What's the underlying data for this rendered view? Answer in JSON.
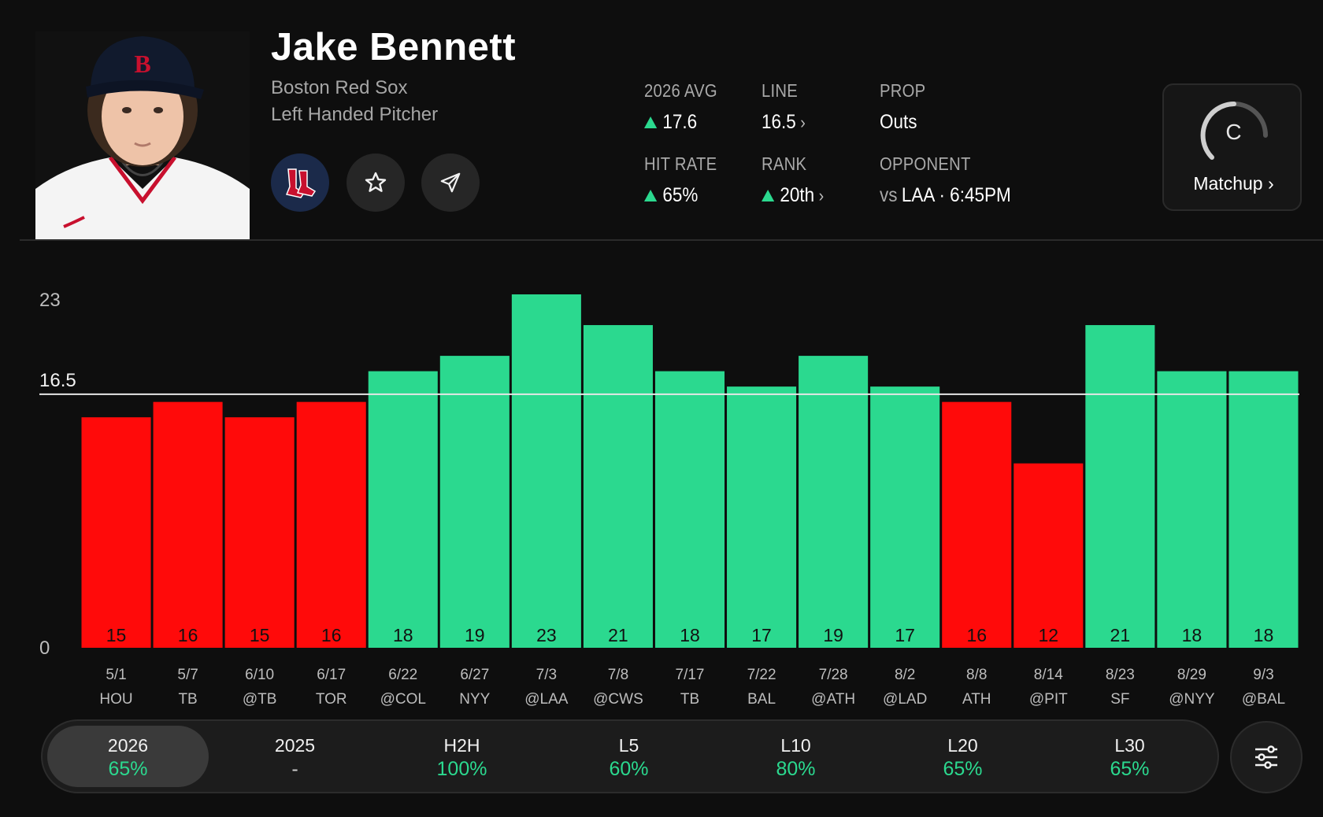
{
  "player": {
    "name": "Jake Bennett",
    "team": "Boston Red Sox",
    "position": "Left Handed Pitcher"
  },
  "actions": {
    "team_logo_icon": "red-sox-logo-icon",
    "favorite_icon": "star-icon",
    "share_icon": "send-icon"
  },
  "stats": {
    "avg_label": "2026 AVG",
    "avg_value": "17.6",
    "line_label": "LINE",
    "line_value": "16.5",
    "prop_label": "PROP",
    "prop_value": "Outs",
    "hit_rate_label": "HIT RATE",
    "hit_rate_value": "65%",
    "rank_label": "RANK",
    "rank_value": "20th",
    "opponent_label": "OPPONENT",
    "opponent_prefix": "vs",
    "opponent_value": "LAA · 6:45PM"
  },
  "matchup": {
    "grade": "C",
    "label": "Matchup",
    "chevron": "›"
  },
  "colors": {
    "over": "#2bd98f",
    "under": "#ff0a0a",
    "line": "#e6e6e6"
  },
  "chart_data": {
    "type": "bar",
    "categories": [
      "5/1",
      "5/7",
      "6/10",
      "6/17",
      "6/22",
      "6/27",
      "7/3",
      "7/8",
      "7/17",
      "7/22",
      "7/28",
      "8/2",
      "8/8",
      "8/14",
      "8/23",
      "8/29",
      "9/3"
    ],
    "opponents": [
      "HOU",
      "TB",
      "@TB",
      "TOR",
      "@COL",
      "NYY",
      "@LAA",
      "@CWS",
      "TB",
      "BAL",
      "@ATH",
      "@LAD",
      "ATH",
      "@PIT",
      "SF",
      "@NYY",
      "@BAL"
    ],
    "values": [
      15,
      16,
      15,
      16,
      18,
      19,
      23,
      21,
      18,
      17,
      19,
      17,
      16,
      12,
      21,
      18,
      18
    ],
    "line": 16.5,
    "ylim": [
      0,
      23
    ],
    "yticks": [
      "0",
      "23"
    ],
    "line_label": "16.5"
  },
  "filters": [
    {
      "label": "2026",
      "value": "65%",
      "active": true
    },
    {
      "label": "2025",
      "value": "-",
      "active": false
    },
    {
      "label": "H2H",
      "value": "100%",
      "active": false
    },
    {
      "label": "L5",
      "value": "60%",
      "active": false
    },
    {
      "label": "L10",
      "value": "80%",
      "active": false
    },
    {
      "label": "L20",
      "value": "65%",
      "active": false
    },
    {
      "label": "L30",
      "value": "65%",
      "active": false
    }
  ],
  "settings_icon": "sliders-icon"
}
